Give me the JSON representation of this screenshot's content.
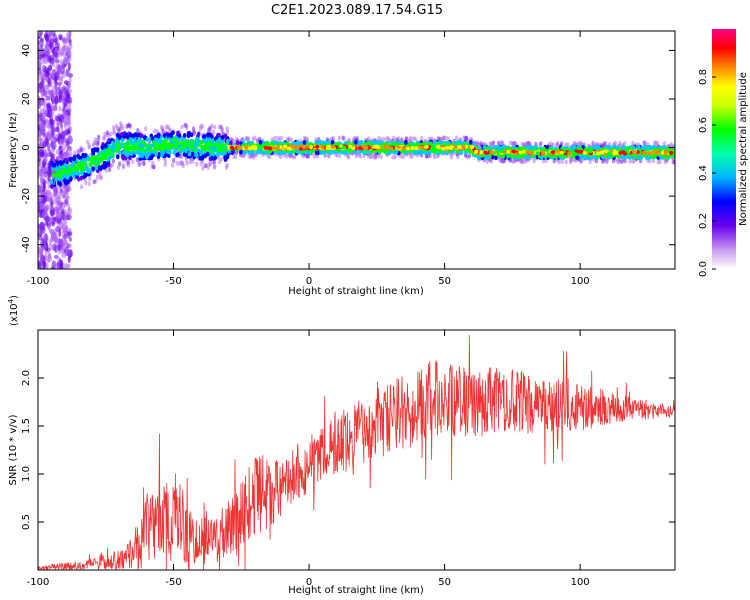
{
  "title": "C2E1.2023.089.17.54.G15",
  "colors": {
    "snr_line": "#ee3333",
    "axis": "#000000",
    "colormap": [
      "#ffffff",
      "#b066ee",
      "#6600ee",
      "#0000ff",
      "#00c8ff",
      "#00ff00",
      "#ffff00",
      "#ff8800",
      "#ff0000",
      "#ff0088"
    ]
  },
  "chart_data": [
    {
      "type": "heatmap",
      "name": "spectrogram",
      "xlabel": "Height of straight line (km)",
      "ylabel": "Frequency (Hz)",
      "xlim": [
        -100,
        135
      ],
      "ylim": [
        -50,
        48
      ],
      "xticks": [
        -100,
        -50,
        0,
        50,
        100
      ],
      "xtick_labels": [
        "-100",
        "-50",
        "0",
        "50",
        "100"
      ],
      "yticks": [
        -40,
        -20,
        0,
        20,
        40
      ],
      "ytick_labels": [
        "-40",
        "-20",
        "0",
        "20",
        "40"
      ],
      "ridge": {
        "x": [
          -98,
          -90,
          -85,
          -80,
          -75,
          -70,
          -60,
          -50,
          -40,
          -30,
          -20,
          -10,
          0,
          10,
          20,
          30,
          40,
          50,
          60,
          62,
          70,
          80,
          90,
          100,
          110,
          120,
          130,
          135
        ],
        "freq": [
          -12,
          -10,
          -8,
          -6,
          -3,
          1,
          0,
          1.5,
          0.5,
          0,
          0,
          0,
          0,
          0,
          0,
          0,
          0,
          0,
          0,
          -2,
          -2,
          -2,
          -2,
          -2,
          -2,
          -2,
          -2,
          -2
        ]
      },
      "colorbar": {
        "label": "Normalized spectral amplitude",
        "range": [
          0.0,
          1.0
        ],
        "ticks": [
          0.0,
          0.2,
          0.4,
          0.6,
          0.8
        ],
        "tick_labels": [
          "0.0",
          "0.2",
          "0.4",
          "0.6",
          "0.8"
        ]
      }
    },
    {
      "type": "line",
      "name": "snr",
      "xlabel": "Height of straight line (km)",
      "ylabel": "SNR (10 * v/v)",
      "y_multiplier_label": "(x10",
      "y_multiplier_exp": "4",
      "y_multiplier_close": ")",
      "xlim": [
        -100,
        135
      ],
      "ylim": [
        0,
        2.5
      ],
      "xticks": [
        -100,
        -50,
        0,
        50,
        100
      ],
      "xtick_labels": [
        "-100",
        "-50",
        "0",
        "50",
        "100"
      ],
      "yticks": [
        0.5,
        1.0,
        1.5,
        2.0
      ],
      "ytick_labels": [
        "0.5",
        "1.0",
        "1.5",
        "2.0"
      ],
      "envelope": {
        "x": [
          -100,
          -85,
          -75,
          -68,
          -62,
          -60,
          -55,
          -50,
          -45,
          -40,
          -35,
          -30,
          -25,
          -20,
          -15,
          -10,
          -5,
          0,
          10,
          20,
          30,
          40,
          50,
          60,
          70,
          80,
          90,
          100,
          110,
          120,
          130,
          135
        ],
        "mean": [
          0.02,
          0.05,
          0.08,
          0.12,
          0.25,
          0.45,
          0.55,
          0.5,
          0.35,
          0.3,
          0.32,
          0.4,
          0.55,
          0.7,
          0.82,
          0.92,
          1.0,
          1.12,
          1.3,
          1.45,
          1.6,
          1.75,
          1.78,
          1.76,
          1.75,
          1.74,
          1.72,
          1.7,
          1.69,
          1.68,
          1.66,
          1.65
        ],
        "spread": [
          0.02,
          0.05,
          0.07,
          0.12,
          0.25,
          0.35,
          0.45,
          0.45,
          0.3,
          0.25,
          0.25,
          0.3,
          0.4,
          0.5,
          0.4,
          0.35,
          0.3,
          0.3,
          0.32,
          0.35,
          0.4,
          0.45,
          0.4,
          0.38,
          0.35,
          0.32,
          0.28,
          0.25,
          0.18,
          0.12,
          0.08,
          0.06
        ]
      },
      "samples": 1400
    }
  ]
}
